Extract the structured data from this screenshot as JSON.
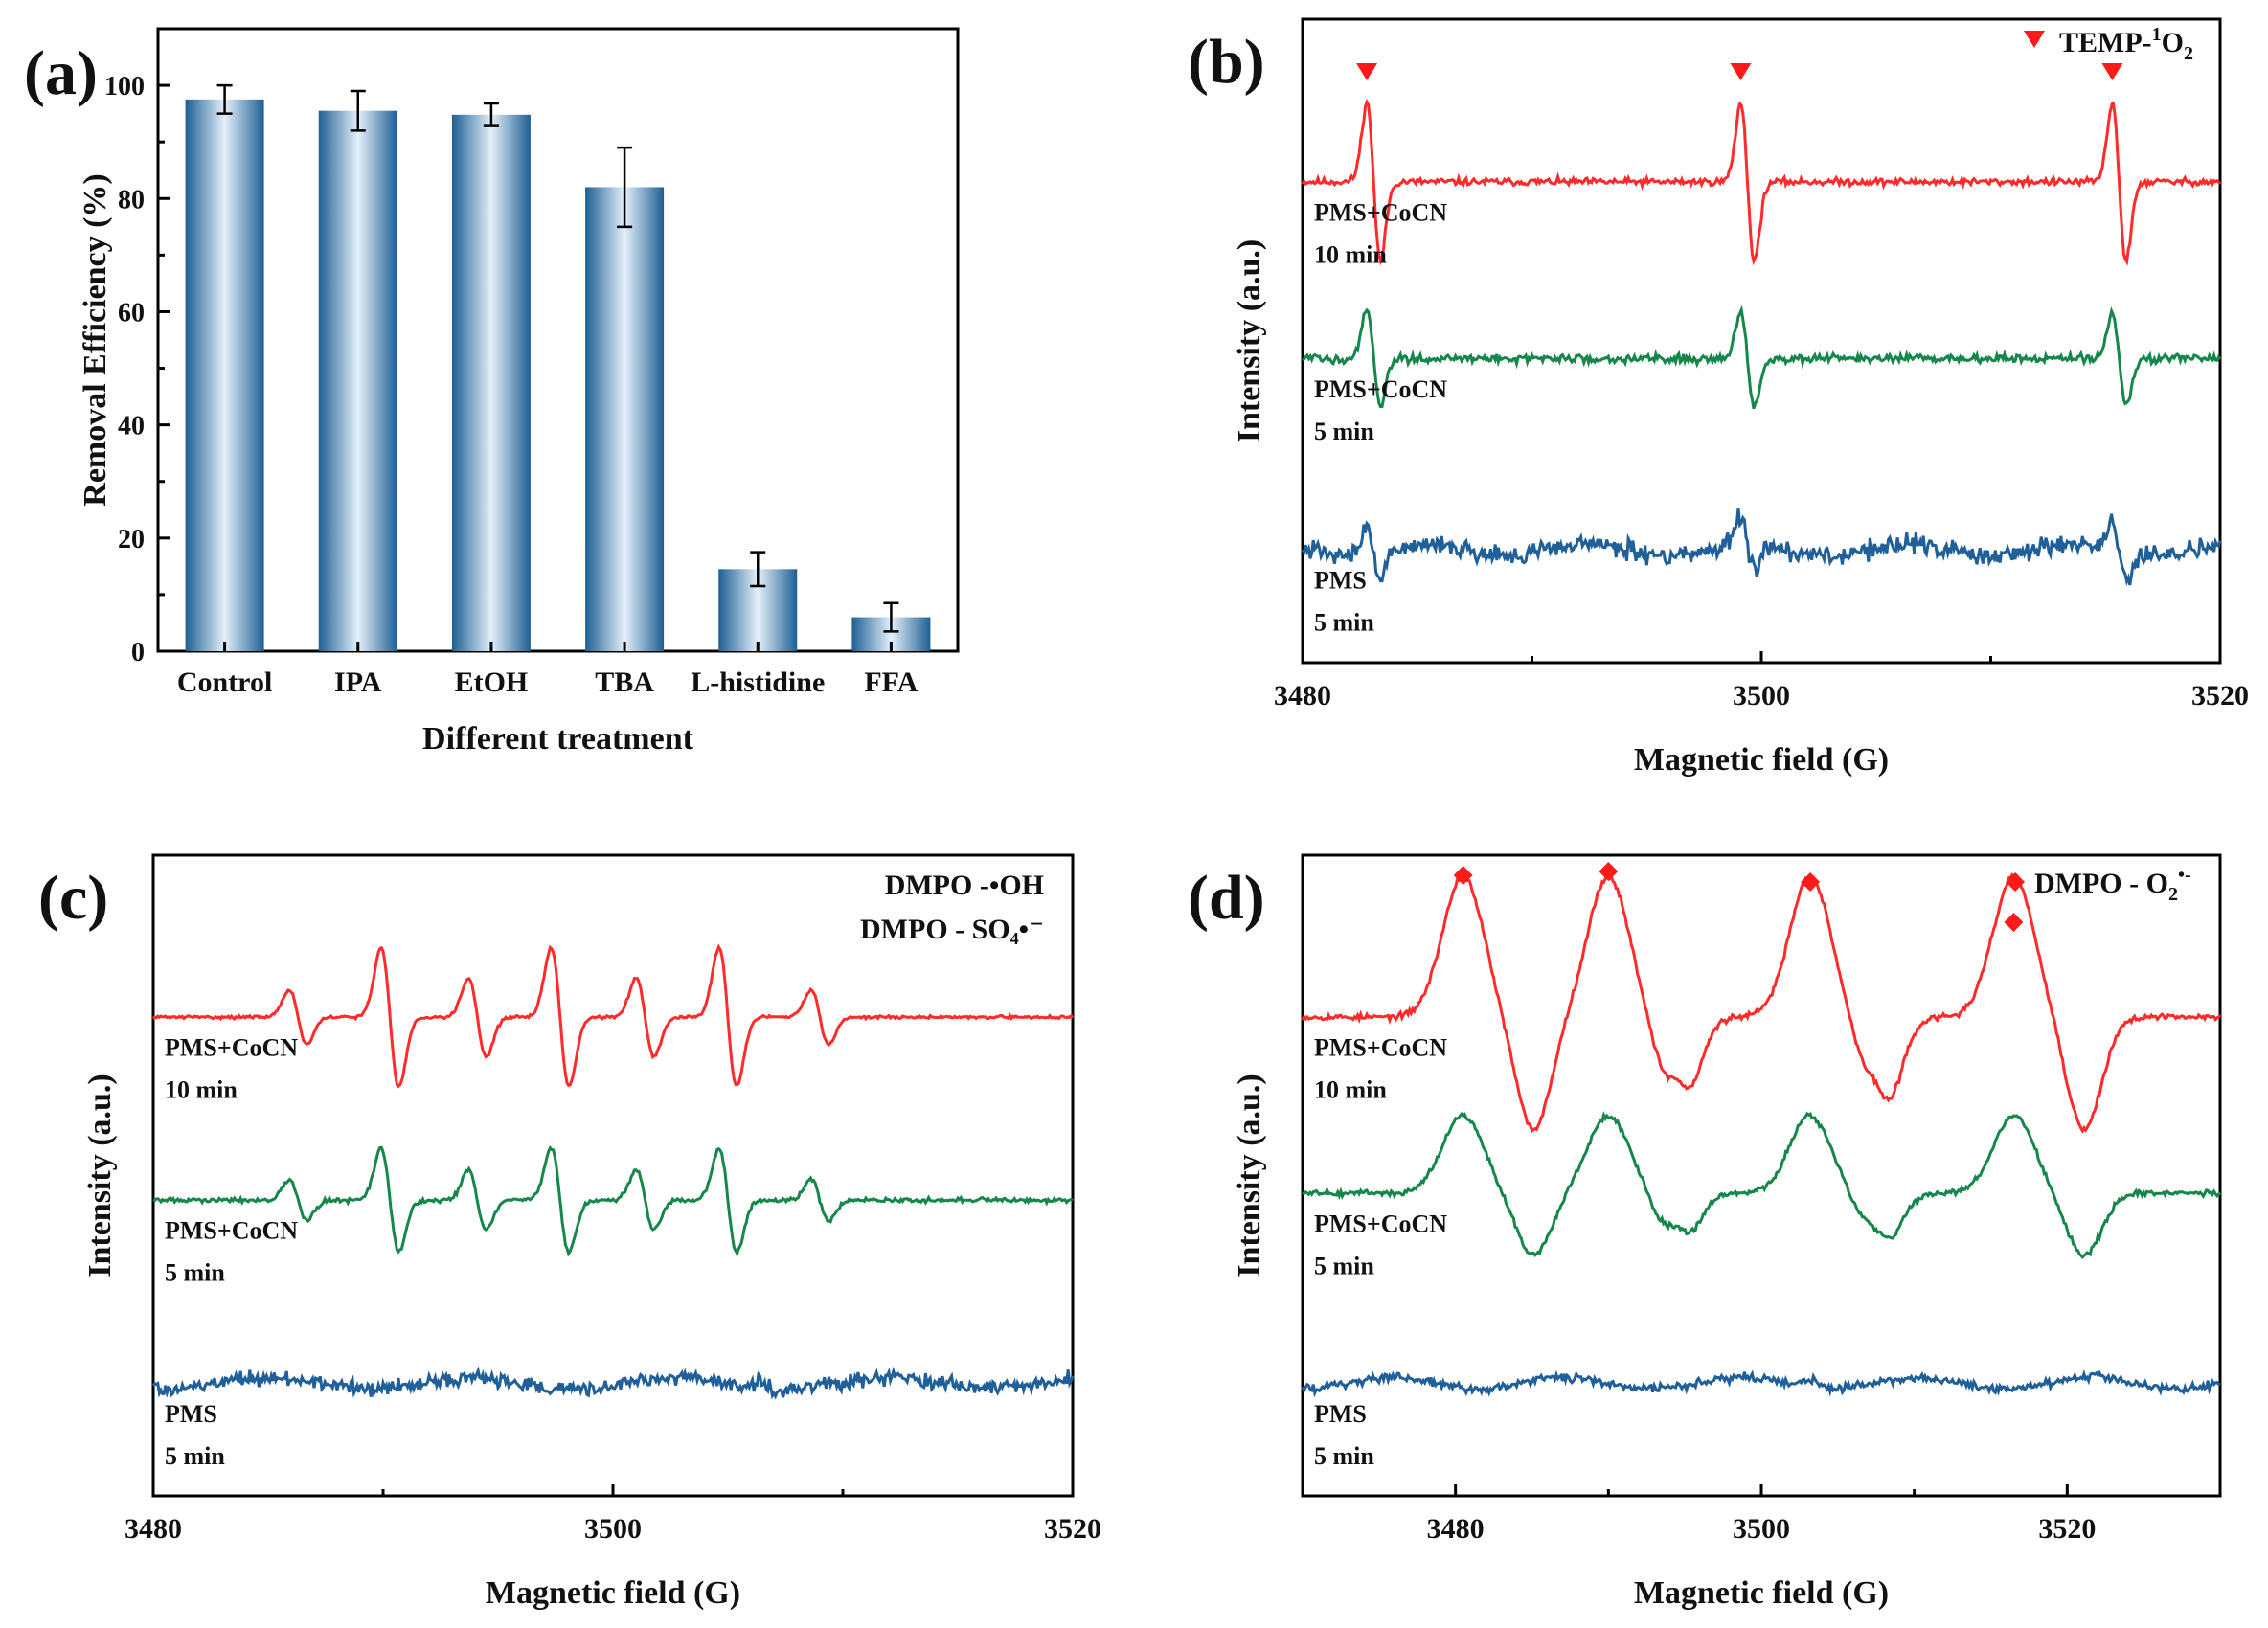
{
  "colors": {
    "red": "#ff2a2a",
    "green": "#16874a",
    "blue": "#1f5f9a",
    "bar_dark": "#1e5f93",
    "bar_light": "#e4f0fb",
    "marker": "#ff1a1a"
  },
  "chart_data": [
    {
      "panel": "(a)",
      "type": "bar",
      "categories": [
        "Control",
        "IPA",
        "EtOH",
        "TBA",
        "L-histidine",
        "FFA"
      ],
      "values": [
        97.5,
        95.5,
        94.8,
        82.0,
        14.5,
        6.0
      ],
      "errors": [
        2.5,
        3.5,
        2.0,
        7.0,
        3.0,
        2.5
      ],
      "xlabel": "Different treatment",
      "ylabel": "Removal Efficiency (%)",
      "ylim": [
        0,
        110
      ],
      "yticks": [
        0,
        20,
        40,
        60,
        80,
        100
      ],
      "grid": false
    },
    {
      "panel": "(b)",
      "type": "line",
      "xlabel": "Magnetic field (G)",
      "ylabel": "Intensity (a.u.)",
      "xlim": [
        3480,
        3520
      ],
      "xticks": [
        3480,
        3500,
        3520
      ],
      "legend": {
        "marker": "triangle-down",
        "text": "TEMP-",
        "sup": "1",
        "post": "O",
        "sub": "2"
      },
      "marker_positions": [
        3482.8,
        3499.1,
        3515.3
      ],
      "series": [
        {
          "name": "PMS+CoCN 10 min",
          "label1": "PMS+CoCN",
          "label2": "10 min",
          "color": "red",
          "baseline": 6.0,
          "amplitude": 1.0,
          "noise": 0.05
        },
        {
          "name": "PMS+CoCN 5 min",
          "label1": "PMS+CoCN",
          "label2": "5 min",
          "color": "green",
          "baseline": 3.5,
          "amplitude": 0.6,
          "noise": 0.06
        },
        {
          "name": "PMS 5 min",
          "label1": "PMS",
          "label2": "5 min",
          "color": "blue",
          "baseline": 0.8,
          "amplitude": 0.35,
          "noise": 0.13
        }
      ]
    },
    {
      "panel": "(c)",
      "type": "line",
      "xlabel": "Magnetic field (G)",
      "ylabel": "Intensity (a.u.)",
      "xlim": [
        3480,
        3520
      ],
      "xticks": [
        3480,
        3500,
        3520
      ],
      "legend_lines": [
        "DMPO -•OH",
        "DMPO - SO₄•⁻"
      ],
      "series": [
        {
          "name": "PMS+CoCN 10 min",
          "label1": "PMS+CoCN",
          "label2": "10 min",
          "color": "red",
          "baseline": 6.0,
          "amplitude": 1.0,
          "noise": 0.02
        },
        {
          "name": "PMS+CoCN 5 min",
          "label1": "PMS+CoCN",
          "label2": "5 min",
          "color": "green",
          "baseline": 3.4,
          "amplitude": 0.75,
          "noise": 0.03
        },
        {
          "name": "PMS 5 min",
          "label1": "PMS",
          "label2": "5 min",
          "color": "blue",
          "baseline": 0.8,
          "amplitude": 0.25,
          "noise": 0.1
        }
      ]
    },
    {
      "panel": "(d)",
      "type": "line",
      "xlabel": "Magnetic field (G)",
      "ylabel": "Intensity (a.u.)",
      "xlim": [
        3470,
        3530
      ],
      "xticks": [
        3480,
        3500,
        3520
      ],
      "legend": {
        "marker": "diamond",
        "text": "DMPO - O",
        "sub": "2",
        "sup": "•-"
      },
      "marker_positions": [
        3480.5,
        3490.0,
        3503.2,
        3516.5
      ],
      "series": [
        {
          "name": "PMS+CoCN 10 min",
          "label1": "PMS+CoCN",
          "label2": "10 min",
          "color": "red",
          "baseline": 6.0,
          "amplitude": 1.0,
          "noise": 0.04
        },
        {
          "name": "PMS+CoCN 5 min",
          "label1": "PMS+CoCN",
          "label2": "5 min",
          "color": "green",
          "baseline": 3.5,
          "amplitude": 0.55,
          "noise": 0.04
        },
        {
          "name": "PMS 5 min",
          "label1": "PMS",
          "label2": "5 min",
          "color": "blue",
          "baseline": 0.8,
          "amplitude": 0.2,
          "noise": 0.06
        }
      ]
    }
  ]
}
